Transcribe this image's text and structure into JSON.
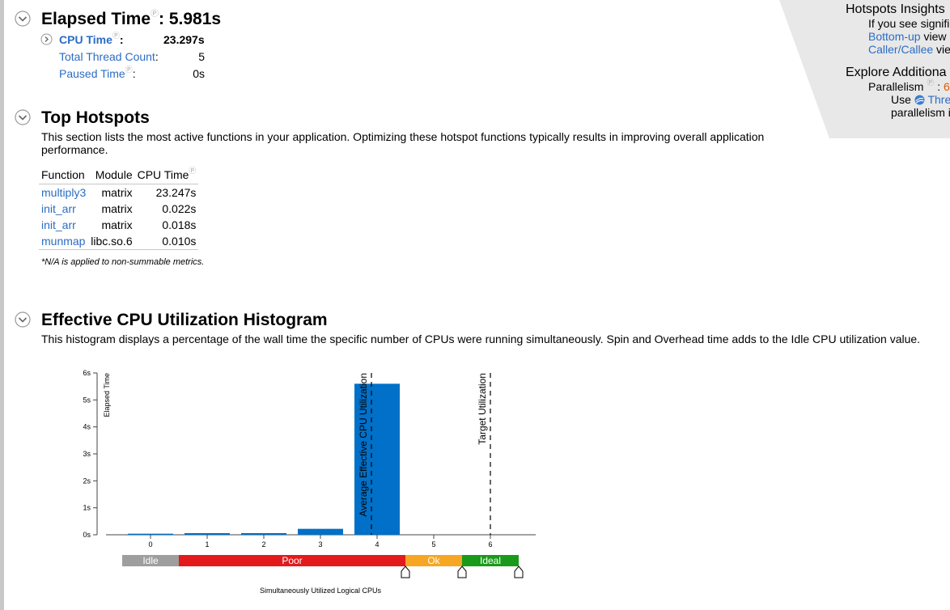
{
  "elapsed": {
    "title": "Elapsed Time",
    "separator": ":",
    "value": "5.981s",
    "metrics": [
      {
        "label": "CPU Time",
        "value": "23.297s"
      },
      {
        "label": "Total Thread Count",
        "value": "5"
      },
      {
        "label": "Paused Time",
        "value": "0s"
      }
    ]
  },
  "hotspots": {
    "title": "Top Hotspots",
    "description": "This section lists the most active functions in your application. Optimizing these hotspot functions typically results in improving overall application performance.",
    "columns": [
      "Function",
      "Module",
      "CPU Time"
    ],
    "rows": [
      {
        "function": "multiply3",
        "module": "matrix",
        "cpu_time": "23.247s"
      },
      {
        "function": "init_arr",
        "module": "matrix",
        "cpu_time": "0.022s"
      },
      {
        "function": "init_arr",
        "module": "matrix",
        "cpu_time": "0.018s"
      },
      {
        "function": "munmap",
        "module": "libc.so.6",
        "cpu_time": "0.010s"
      }
    ],
    "footnote": "*N/A is applied to non-summable metrics."
  },
  "histogram": {
    "title": "Effective CPU Utilization Histogram",
    "description": "This histogram displays a percentage of the wall time the specific number of CPUs were running simultaneously. Spin and Overhead time adds to the Idle CPU utilization value."
  },
  "insights": {
    "title1": "Hotspots Insights",
    "line1": "If you see signifi",
    "link_bottomup": "Bottom-up",
    "text_view": " view",
    "link_caller": "Caller/Callee",
    "text_vie": " vie",
    "title2": "Explore Additiona",
    "parallelism_label": "Parallelism",
    "parallelism_sep": ":",
    "parallelism_value": "6",
    "use_text": "Use",
    "threading_link": "Thre",
    "parallelism_line": "parallelism i"
  },
  "chart_data": {
    "type": "bar",
    "xlabel": "Simultaneously Utilized Logical CPUs",
    "ylabel": "Elapsed Time",
    "categories": [
      "0",
      "1",
      "2",
      "3",
      "4",
      "5",
      "6"
    ],
    "values": [
      0.04,
      0.06,
      0.06,
      0.22,
      5.6,
      0,
      0
    ],
    "ylim": [
      0,
      6
    ],
    "xlim": [
      -0.8,
      6.8
    ],
    "yticks": [
      "0s",
      "1s",
      "2s",
      "3s",
      "4s",
      "5s",
      "6s"
    ],
    "bar_color": "#0070c8",
    "annotations": [
      {
        "label": "Average Effective CPU Utilization",
        "x": 3.9
      },
      {
        "label": "Target Utilization",
        "x": 6
      }
    ],
    "utilization_bands": [
      {
        "label": "Idle",
        "from": -0.5,
        "to": 0.5,
        "color": "#9e9e9e"
      },
      {
        "label": "Poor",
        "from": 0.5,
        "to": 4.5,
        "color": "#e31a1c"
      },
      {
        "label": "Ok",
        "from": 4.5,
        "to": 5.5,
        "color": "#f6a623"
      },
      {
        "label": "Ideal",
        "from": 5.5,
        "to": 6.5,
        "color": "#1a9a1a"
      }
    ],
    "band_markers": [
      4.5,
      5.5,
      6.5
    ],
    "grid": false,
    "legend": "none"
  }
}
